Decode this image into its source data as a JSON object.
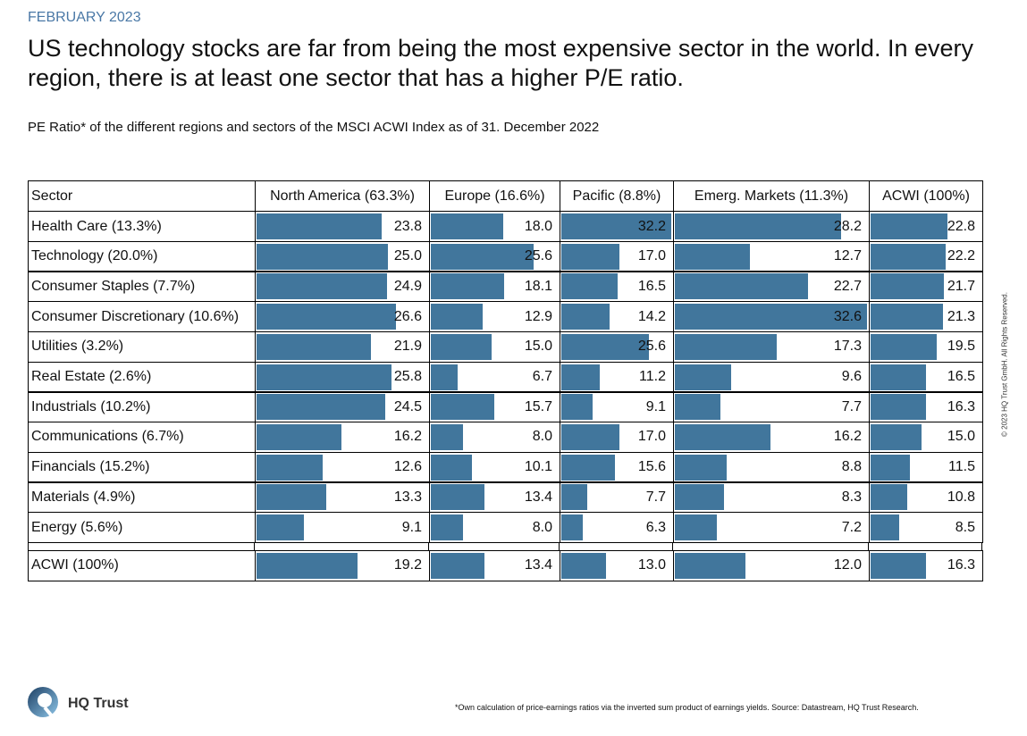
{
  "header": {
    "date": "FEBRUARY 2023",
    "title": "US technology stocks are far from being the most expensive sector in the world. In every region, there is at least one sector that has a higher P/E ratio.",
    "subtitle": "PE Ratio* of the different regions and sectors of the MSCI ACWI Index as of 31. December 2022"
  },
  "table": {
    "columns": [
      "Sector",
      "North America (63.3%)",
      "Europe (16.6%)",
      "Pacific (8.8%)",
      "Emerg. Markets (11.3%)",
      "ACWI (100%)"
    ],
    "bar_color": "#41769c",
    "rows": [
      {
        "label": "Health Care (13.3%)",
        "values": [
          "23.8",
          "18.0",
          "32.2",
          "28.2",
          "22.8"
        ]
      },
      {
        "label": "Technology (20.0%)",
        "values": [
          "25.0",
          "25.6",
          "17.0",
          "12.7",
          "22.2"
        ]
      },
      {
        "label": "Consumer Staples (7.7%)",
        "values": [
          "24.9",
          "18.1",
          "16.5",
          "22.7",
          "21.7"
        ]
      },
      {
        "label": "Consumer Discretionary (10.6%)",
        "values": [
          "26.6",
          "12.9",
          "14.2",
          "32.6",
          "21.3"
        ]
      },
      {
        "label": "Utilities (3.2%)",
        "values": [
          "21.9",
          "15.0",
          "25.6",
          "17.3",
          "19.5"
        ]
      },
      {
        "label": "Real Estate (2.6%)",
        "values": [
          "25.8",
          "6.7",
          "11.2",
          "9.6",
          "16.5"
        ]
      },
      {
        "label": "Industrials (10.2%)",
        "values": [
          "24.5",
          "15.7",
          "9.1",
          "7.7",
          "16.3"
        ]
      },
      {
        "label": "Communications (6.7%)",
        "values": [
          "16.2",
          "8.0",
          "17.0",
          "16.2",
          "15.0"
        ]
      },
      {
        "label": "Financials (15.2%)",
        "values": [
          "12.6",
          "10.1",
          "15.6",
          "8.8",
          "11.5"
        ]
      },
      {
        "label": "Materials (4.9%)",
        "values": [
          "13.3",
          "13.4",
          "7.7",
          "8.3",
          "10.8"
        ]
      },
      {
        "label": "Energy (5.6%)",
        "values": [
          "9.1",
          "8.0",
          "6.3",
          "7.2",
          "8.5"
        ]
      }
    ],
    "total": {
      "label": "ACWI (100%)",
      "values": [
        "19.2",
        "13.4",
        "13.0",
        "12.0",
        "16.3"
      ]
    }
  },
  "footer": {
    "logo": "HQ Trust",
    "footnote": "*Own calculation of price-earnings ratios via the inverted sum product of earnings yields. Source: Datastream, HQ Trust Research.",
    "copyright": "© 2023 HQ Trust GmbH. All Rights Reserved."
  }
}
